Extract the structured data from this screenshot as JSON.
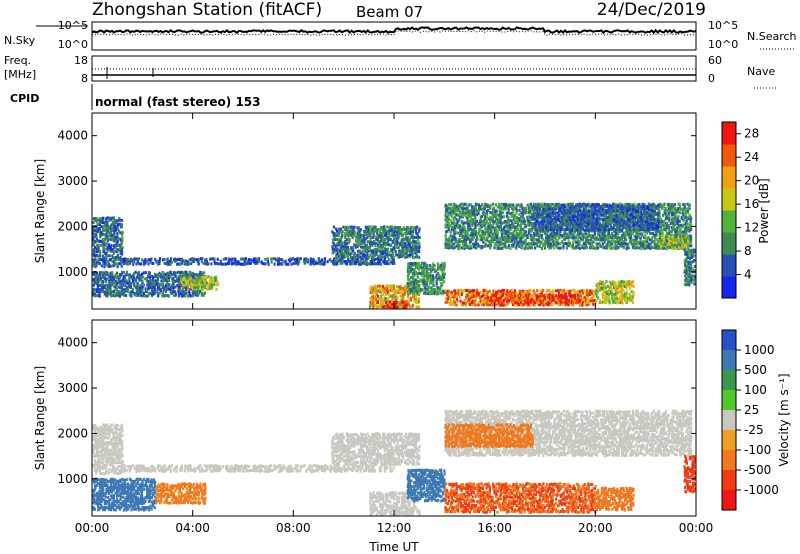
{
  "header": {
    "station": "Zhongshan Station (fitACF)",
    "beam": "Beam 07",
    "date": "24/Dec/2019"
  },
  "small_panels": {
    "nsky_label": "N.Sky",
    "nsearch_label": "N.Search",
    "noise_tick_top": "10^5",
    "noise_tick_bottom": "10^0",
    "freq_label_1": "Freq.",
    "freq_label_2": "[MHz]",
    "freq_tick_top": "18",
    "freq_tick_bottom": "8",
    "nave_label": "Nave",
    "nave_tick_top": "60",
    "nave_tick_bottom": "0",
    "cpid_label": "CPID",
    "cpid_text": "normal (fast stereo) 153"
  },
  "axes": {
    "ylabel": "Slant Range [km]",
    "xlabel": "Time UT"
  },
  "colors": {
    "power": [
      "#1428f0",
      "#2850b4",
      "#3c8c50",
      "#50b43c",
      "#c8c814",
      "#f0a014",
      "#f05a0a",
      "#f01414"
    ],
    "velocity": [
      "#2850c8",
      "#3c78b4",
      "#3c9650",
      "#50c828",
      "#c8c8c0",
      "#f0a01e",
      "#f0781e",
      "#f03c14",
      "#f01414"
    ]
  },
  "chart_data": [
    {
      "type": "heatmap",
      "name": "power",
      "xlabel": "Time UT",
      "ylabel": "Slant Range [km]",
      "xlim": [
        "00:00",
        "24:00"
      ],
      "ylim": [
        180,
        4500
      ],
      "x_ticks": [
        "00:00",
        "04:00",
        "08:00",
        "12:00",
        "16:00",
        "20:00",
        "00:00"
      ],
      "y_ticks": [
        1000,
        2000,
        3000,
        4000
      ],
      "colorbar": {
        "label": "Power [dB]",
        "ticks": [
          4,
          8,
          12,
          16,
          20,
          24,
          28
        ],
        "range": [
          0,
          30
        ]
      },
      "regions": [
        {
          "t": [
            0.0,
            1.2
          ],
          "r": [
            1100,
            2200
          ],
          "v": 7
        },
        {
          "t": [
            1.0,
            4.0
          ],
          "r": [
            1150,
            1300
          ],
          "v": 6
        },
        {
          "t": [
            4.0,
            8.0
          ],
          "r": [
            1150,
            1300
          ],
          "v": 5
        },
        {
          "t": [
            8.0,
            12.0
          ],
          "r": [
            1150,
            1300
          ],
          "v": 5
        },
        {
          "t": [
            0.0,
            4.5
          ],
          "r": [
            450,
            1000
          ],
          "v": 7
        },
        {
          "t": [
            3.5,
            5.0
          ],
          "r": [
            600,
            900
          ],
          "v": 15
        },
        {
          "t": [
            9.5,
            13.0
          ],
          "r": [
            1300,
            2000
          ],
          "v": 8
        },
        {
          "t": [
            11.0,
            13.0
          ],
          "r": [
            200,
            700
          ],
          "v": 20
        },
        {
          "t": [
            11.5,
            12.5
          ],
          "r": [
            200,
            350
          ],
          "v": 28
        },
        {
          "t": [
            12.5,
            14.0
          ],
          "r": [
            500,
            1200
          ],
          "v": 10
        },
        {
          "t": [
            14.0,
            23.8
          ],
          "r": [
            1500,
            2500
          ],
          "v": 9
        },
        {
          "t": [
            17.5,
            22.5
          ],
          "r": [
            1900,
            2500
          ],
          "v": 6
        },
        {
          "t": [
            22.5,
            23.7
          ],
          "r": [
            1500,
            1800
          ],
          "v": 14
        },
        {
          "t": [
            14.0,
            20.0
          ],
          "r": [
            250,
            600
          ],
          "v": 24
        },
        {
          "t": [
            15.5,
            19.5
          ],
          "r": [
            300,
            500
          ],
          "v": 28
        },
        {
          "t": [
            20.0,
            21.5
          ],
          "r": [
            300,
            800
          ],
          "v": 16
        },
        {
          "t": [
            23.5,
            24.0
          ],
          "r": [
            700,
            1500
          ],
          "v": 8
        }
      ]
    },
    {
      "type": "heatmap",
      "name": "velocity",
      "xlabel": "Time UT",
      "ylabel": "Slant Range [km]",
      "xlim": [
        "00:00",
        "24:00"
      ],
      "ylim": [
        180,
        4500
      ],
      "x_ticks": [
        "00:00",
        "04:00",
        "08:00",
        "12:00",
        "16:00",
        "20:00",
        "00:00"
      ],
      "y_ticks": [
        1000,
        2000,
        3000,
        4000
      ],
      "colorbar": {
        "label": "Velocity [m s⁻¹]",
        "ticks": [
          1000,
          500,
          100,
          25,
          -25,
          -100,
          -500,
          -1000
        ]
      },
      "regions": [
        {
          "t": [
            0.0,
            1.2
          ],
          "r": [
            1100,
            2200
          ],
          "v": 0
        },
        {
          "t": [
            1.0,
            12.0
          ],
          "r": [
            1150,
            1300
          ],
          "v": 0
        },
        {
          "t": [
            0.0,
            2.5
          ],
          "r": [
            300,
            1000
          ],
          "v": 150
        },
        {
          "t": [
            2.5,
            4.5
          ],
          "r": [
            450,
            900
          ],
          "v": -120
        },
        {
          "t": [
            9.5,
            13.0
          ],
          "r": [
            1300,
            2000
          ],
          "v": 0
        },
        {
          "t": [
            11.0,
            13.0
          ],
          "r": [
            200,
            700
          ],
          "v": 0
        },
        {
          "t": [
            12.5,
            14.0
          ],
          "r": [
            500,
            1200
          ],
          "v": 200
        },
        {
          "t": [
            14.0,
            23.8
          ],
          "r": [
            1500,
            2500
          ],
          "v": 0
        },
        {
          "t": [
            14.0,
            17.5
          ],
          "r": [
            1700,
            2200
          ],
          "v": -150
        },
        {
          "t": [
            14.0,
            20.0
          ],
          "r": [
            250,
            900
          ],
          "v": -300
        },
        {
          "t": [
            20.0,
            21.5
          ],
          "r": [
            300,
            800
          ],
          "v": -200
        },
        {
          "t": [
            23.5,
            24.0
          ],
          "r": [
            700,
            1500
          ],
          "v": -500
        }
      ]
    }
  ]
}
